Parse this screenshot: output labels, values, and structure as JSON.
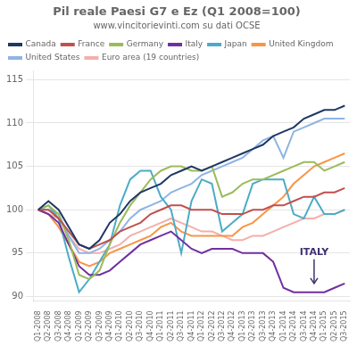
{
  "chart_data": {
    "type": "line",
    "title": "Pil reale Paesi G7 e Ez (Q1 2008=100)",
    "subtitle": "www.vincitorievinti.com su dati OCSE",
    "categories": [
      "Q1-2008",
      "Q2-2008",
      "Q3-2008",
      "Q4-2008",
      "Q1-2009",
      "Q2-2009",
      "Q3-2009",
      "Q4-2009",
      "Q1-2010",
      "Q2-2010",
      "Q3-2010",
      "Q4-2010",
      "Q1-2011",
      "Q2-2011",
      "Q3-2011",
      "Q4-2011",
      "Q1-2012",
      "Q2-2012",
      "Q3-2012",
      "Q4-2012",
      "Q1-2013",
      "Q2-2013",
      "Q3-2013",
      "Q4-2013",
      "Q1-2014",
      "Q2-2014",
      "Q3-2014",
      "Q4-2014",
      "Q1-2015",
      "Q2-2015",
      "Q3-2015"
    ],
    "series": [
      {
        "name": "Canada",
        "color": "#1F3864",
        "values": [
          100,
          101.0,
          100.0,
          98.0,
          96.0,
          95.5,
          96.5,
          98.5,
          99.5,
          101.0,
          102.0,
          102.5,
          103.0,
          104.0,
          104.5,
          105.0,
          104.5,
          105.0,
          105.5,
          106.0,
          106.5,
          107.0,
          107.5,
          108.5,
          109.0,
          109.5,
          110.5,
          111.0,
          111.5,
          111.5,
          112.0
        ]
      },
      {
        "name": "France",
        "color": "#C0504D",
        "values": [
          100,
          100.0,
          99.0,
          97.5,
          96.0,
          95.5,
          96.0,
          96.5,
          97.5,
          98.0,
          98.5,
          99.5,
          100.0,
          100.5,
          100.5,
          100.0,
          100.0,
          100.0,
          99.5,
          99.5,
          99.5,
          100.0,
          100.0,
          100.5,
          100.5,
          101.0,
          101.5,
          101.5,
          102.0,
          102.0,
          102.5
        ]
      },
      {
        "name": "Germany",
        "color": "#9BBB59",
        "values": [
          100,
          100.5,
          99.5,
          96.5,
          92.5,
          92.0,
          93.0,
          96.0,
          98.5,
          100.5,
          102.0,
          103.5,
          104.5,
          105.0,
          105.0,
          104.5,
          104.5,
          105.0,
          101.5,
          102.0,
          103.0,
          103.5,
          103.5,
          104.0,
          104.5,
          105.0,
          105.5,
          105.5,
          104.5,
          105.0,
          105.5
        ]
      },
      {
        "name": "Italy",
        "color": "#7030A0",
        "values": [
          100,
          99.5,
          98.5,
          96.0,
          93.5,
          92.5,
          92.5,
          93.0,
          94.0,
          95.0,
          96.0,
          96.5,
          97.0,
          97.5,
          96.5,
          95.5,
          95.0,
          95.5,
          95.5,
          95.5,
          95.0,
          95.0,
          95.0,
          94.0,
          91.0,
          90.5,
          90.5,
          90.5,
          90.5,
          91.0,
          91.5
        ]
      },
      {
        "name": "Japan",
        "color": "#4BACC6",
        "values": [
          100,
          100.5,
          99.0,
          94.5,
          90.5,
          92.0,
          94.0,
          96.0,
          100.5,
          103.5,
          104.5,
          104.5,
          101.5,
          100.0,
          95.0,
          101.0,
          103.5,
          103.0,
          97.5,
          98.5,
          99.5,
          103.0,
          103.5,
          103.5,
          103.5,
          99.5,
          99.0,
          101.5,
          99.5,
          99.5,
          100.0
        ]
      },
      {
        "name": "United Kingdom",
        "color": "#F79646",
        "values": [
          100,
          99.5,
          98.0,
          96.0,
          94.0,
          93.5,
          94.0,
          95.0,
          95.5,
          96.0,
          96.5,
          97.0,
          98.0,
          98.5,
          97.5,
          97.0,
          97.0,
          97.0,
          97.0,
          97.0,
          98.0,
          98.5,
          99.5,
          100.5,
          101.5,
          103.0,
          104.0,
          105.0,
          105.5,
          106.0,
          106.5
        ]
      },
      {
        "name": "United States",
        "color": "#8EB4E3",
        "values": [
          100,
          100.0,
          99.5,
          97.0,
          95.0,
          95.0,
          95.5,
          96.5,
          97.5,
          99.0,
          100.0,
          100.5,
          101.0,
          102.0,
          102.5,
          103.0,
          104.0,
          104.5,
          105.0,
          105.5,
          106.0,
          107.0,
          108.0,
          108.5,
          106.0,
          109.0,
          109.5,
          110.0,
          110.5,
          110.5,
          110.5
        ]
      },
      {
        "name": "Euro area (19 countries)",
        "color": "#F4AFAB",
        "values": [
          100,
          99.5,
          99.0,
          97.0,
          95.5,
          95.0,
          95.0,
          95.5,
          96.0,
          97.0,
          97.5,
          98.0,
          98.5,
          99.0,
          98.5,
          98.0,
          97.5,
          97.5,
          97.0,
          96.5,
          96.5,
          97.0,
          97.0,
          97.5,
          98.0,
          98.5,
          99.0,
          99.0,
          99.5,
          99.5,
          100.0
        ]
      }
    ],
    "ylim": [
      89.5,
      116
    ],
    "yticks": [
      90,
      95,
      100,
      105,
      110,
      115
    ],
    "grid": "y",
    "legend": "upper left",
    "annotations": [
      {
        "text": "ITALY",
        "x": "Q4-2014",
        "y": 94.5,
        "arrow_y": 91.5,
        "color": "#3F3170"
      }
    ]
  }
}
